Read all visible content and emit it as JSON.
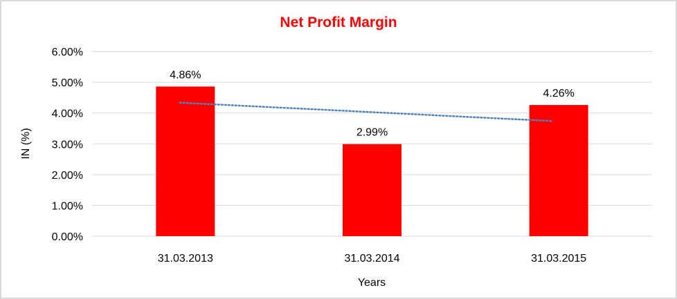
{
  "chart_data": {
    "type": "bar",
    "title": "Net Profit Margin",
    "xlabel": "Years",
    "ylabel": "IN (%)",
    "categories": [
      "31.03.2013",
      "31.03.2014",
      "31.03.2015"
    ],
    "values": [
      4.86,
      2.99,
      4.26
    ],
    "data_labels": [
      "4.86%",
      "2.99%",
      "4.26%"
    ],
    "ylim": [
      0,
      6
    ],
    "yticks": [
      0,
      1,
      2,
      3,
      4,
      5,
      6
    ],
    "ytick_labels": [
      "0.00%",
      "1.00%",
      "2.00%",
      "3.00%",
      "4.00%",
      "5.00%",
      "6.00%"
    ],
    "grid": true,
    "trendline": {
      "type": "linear",
      "style": "dotted"
    },
    "colors": {
      "bar": "#ff0000",
      "title": "#ff0000",
      "trendline": "#4f81bd",
      "grid": "#d9d9d9",
      "border": "#d9d9d9"
    }
  }
}
